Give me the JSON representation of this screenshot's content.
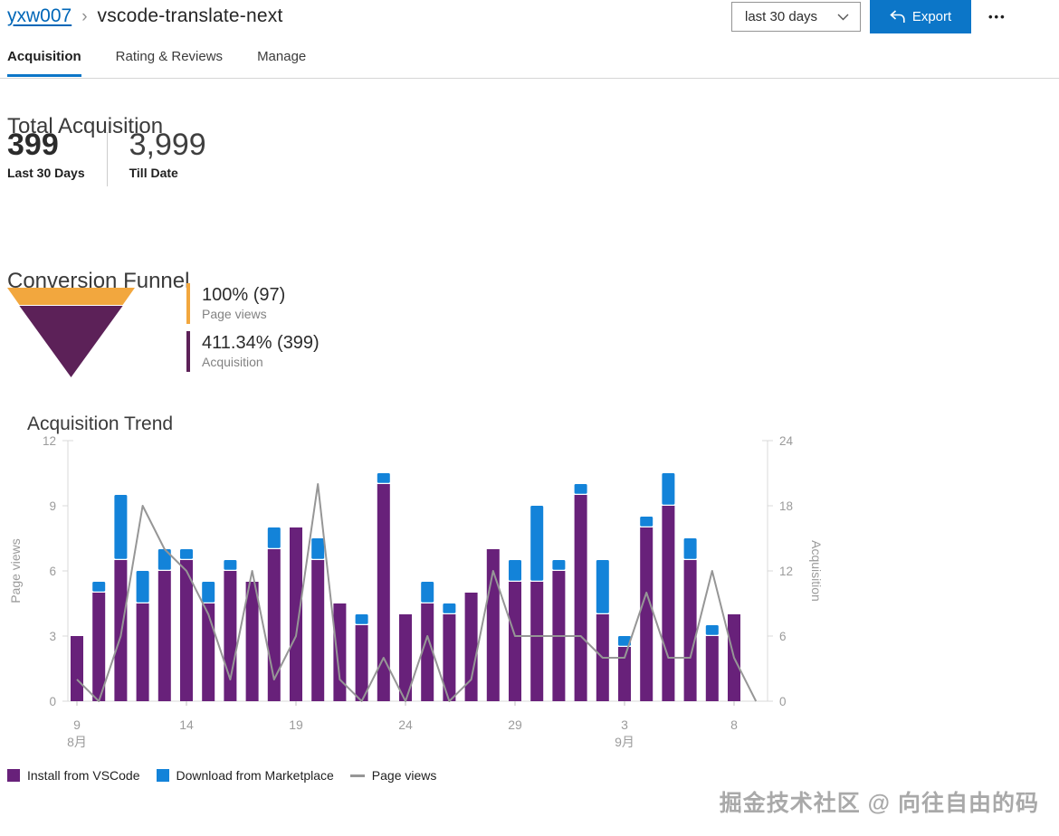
{
  "header": {
    "breadcrumb": {
      "publisher": "yxw007",
      "separator": "›",
      "extension": "vscode-translate-next"
    },
    "date_range_value": "last 30 days",
    "export_label": "Export",
    "more_label": "•••"
  },
  "tabs": [
    {
      "label": "Acquisition",
      "active": true
    },
    {
      "label": "Rating & Reviews",
      "active": false
    },
    {
      "label": "Manage",
      "active": false
    }
  ],
  "total_acquisition": {
    "heading": "Total Acquisition",
    "last30_value": "399",
    "last30_label": "Last 30 Days",
    "tilldate_value": "3,999",
    "tilldate_label": "Till Date"
  },
  "funnel": {
    "heading": "Conversion Funnel",
    "stages": [
      {
        "value": "100% (97)",
        "label": "Page views",
        "color": "#F2A73E"
      },
      {
        "value": "411.34% (399)",
        "label": "Acquisition",
        "color": "#5C2158"
      }
    ]
  },
  "chart_data": {
    "type": "bar",
    "title": "Acquisition Trend",
    "categories": [
      "8/9",
      "8/10",
      "8/11",
      "8/12",
      "8/13",
      "8/14",
      "8/15",
      "8/16",
      "8/17",
      "8/18",
      "8/19",
      "8/20",
      "8/21",
      "8/22",
      "8/23",
      "8/24",
      "8/25",
      "8/26",
      "8/27",
      "8/28",
      "8/29",
      "8/30",
      "8/31",
      "9/1",
      "9/2",
      "9/3",
      "9/4",
      "9/5",
      "9/6",
      "9/7",
      "9/8",
      "9/9"
    ],
    "series": [
      {
        "name": "Install from VSCode",
        "type": "bar",
        "stack": true,
        "axis": "right",
        "color": "#68217A",
        "values": [
          6,
          10,
          13,
          9,
          12,
          13,
          9,
          12,
          11,
          14,
          16,
          13,
          9,
          7,
          20,
          8,
          9,
          8,
          10,
          14,
          11,
          11,
          12,
          19,
          8,
          5,
          16,
          18,
          13,
          6,
          8,
          0
        ]
      },
      {
        "name": "Download from Marketplace",
        "type": "bar",
        "stack": true,
        "axis": "right",
        "color": "#1383D9",
        "values": [
          0,
          1,
          6,
          3,
          2,
          1,
          2,
          1,
          0,
          2,
          0,
          2,
          0,
          1,
          1,
          0,
          2,
          1,
          0,
          0,
          2,
          7,
          1,
          1,
          5,
          1,
          1,
          3,
          2,
          1,
          0,
          0
        ]
      },
      {
        "name": "Page views",
        "type": "line",
        "axis": "left",
        "color": "#969696",
        "values": [
          1,
          0,
          3,
          9,
          7,
          6,
          4,
          1,
          6,
          1,
          3,
          10,
          1,
          0,
          2,
          0,
          3,
          0,
          1,
          6,
          3,
          3,
          3,
          3,
          2,
          2,
          5,
          2,
          2,
          6,
          2,
          0
        ]
      }
    ],
    "left_axis": {
      "label": "Page views",
      "ticks": [
        0,
        3,
        6,
        9,
        12
      ],
      "max": 12
    },
    "right_axis": {
      "label": "Acquisition",
      "ticks": [
        0,
        6,
        12,
        18,
        24
      ],
      "max": 24
    },
    "x_ticks": [
      {
        "i": 0,
        "label": "9",
        "month": "8月"
      },
      {
        "i": 5,
        "label": "14"
      },
      {
        "i": 10,
        "label": "19"
      },
      {
        "i": 15,
        "label": "24"
      },
      {
        "i": 20,
        "label": "29"
      },
      {
        "i": 25,
        "label": "3",
        "month": "9月"
      },
      {
        "i": 30,
        "label": "8"
      }
    ],
    "grid": false,
    "legend_position": "bottom"
  },
  "trend": {
    "heading": "Acquisition Trend"
  },
  "legend": [
    {
      "label": "Install from VSCode",
      "color": "#68217A",
      "shape": "square"
    },
    {
      "label": "Download from Marketplace",
      "color": "#1383D9",
      "shape": "square"
    },
    {
      "label": "Page views",
      "color": "#969696",
      "shape": "line"
    }
  ],
  "watermark": "掘金技术社区 @ 向往自由的码",
  "colors": {
    "accent_blue": "#0C76C8",
    "link_blue": "#0067B8",
    "bar_purple": "#68217A",
    "bar_blue": "#1383D9",
    "funnel_orange": "#F2A73E",
    "funnel_purple": "#5C2158",
    "line_gray": "#969696",
    "axis_gray": "#d9d9d9",
    "tick_text_gray": "#9b9b9b"
  }
}
